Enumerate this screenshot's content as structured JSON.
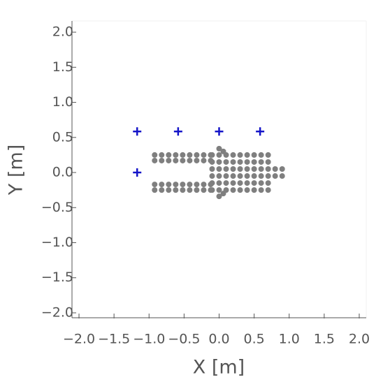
{
  "chart_data": {
    "type": "scatter",
    "xlabel": "X [m]",
    "ylabel": "Y [m]",
    "xlim": [
      -2.1,
      2.1
    ],
    "ylim": [
      -2.07,
      2.16
    ],
    "xticks": [
      {
        "value": -2,
        "label": "−2.0"
      },
      {
        "value": -1.5,
        "label": "−1.5"
      },
      {
        "value": -1,
        "label": "−1.0"
      },
      {
        "value": -0.5,
        "label": "−0.5"
      },
      {
        "value": 0,
        "label": "0.0"
      },
      0.5,
      {
        "value": 1,
        "label": "1.0"
      },
      1.5,
      {
        "value": 2,
        "label": "2.0"
      }
    ],
    "yticks": [
      {
        "value": -2,
        "label": "−2.0"
      },
      {
        "value": -1.5,
        "label": "−1.5"
      },
      {
        "value": -1,
        "label": "−1.0"
      },
      {
        "value": -0.5,
        "label": "−0.5"
      },
      {
        "value": 0,
        "label": "0.0"
      },
      0.5,
      {
        "value": 1,
        "label": "1.0"
      },
      1.5,
      {
        "value": 2,
        "label": "2.0"
      }
    ],
    "series": [
      {
        "color": "#1414c8",
        "marker": "plus",
        "x": [
          -1.17,
          -0.585,
          0,
          0.585,
          -1.17
        ],
        "y": [
          0.585,
          0.585,
          0.585,
          0.585,
          0
        ]
      },
      {
        "color": "#7f7f7f",
        "marker": "circle",
        "x": [
          -0.92,
          -0.92,
          -0.92,
          -0.92,
          -0.82,
          -0.82,
          -0.82,
          -0.82,
          -0.72,
          -0.72,
          -0.72,
          -0.72,
          -0.62,
          -0.62,
          -0.62,
          -0.62,
          -0.52,
          -0.52,
          -0.52,
          -0.52,
          -0.42,
          -0.42,
          -0.42,
          -0.42,
          -0.32,
          -0.32,
          -0.32,
          -0.32,
          -0.22,
          -0.22,
          -0.22,
          -0.22,
          -0.12,
          -0.12,
          -0.12,
          -0.12,
          -0.1,
          -0.1,
          -0.1,
          -0.1,
          -0.1,
          -0.1,
          0,
          0,
          0,
          0,
          0,
          0,
          0.1,
          0.1,
          0.1,
          0.1,
          0.1,
          0.1,
          0.2,
          0.2,
          0.2,
          0.2,
          0.2,
          0.2,
          0.3,
          0.3,
          0.3,
          0.3,
          0.3,
          0.3,
          0.4,
          0.4,
          0.4,
          0.4,
          0.4,
          0.4,
          0.5,
          0.5,
          0.5,
          0.5,
          0.5,
          0.5,
          0.6,
          0.6,
          0.6,
          0.6,
          0.6,
          0.6,
          0.7,
          0.7,
          0.7,
          0.7,
          0.7,
          0.7,
          0.8,
          0.8,
          0.9,
          0.9,
          0,
          0,
          0.06,
          0.06
        ],
        "y": [
          0.25,
          0.17,
          -0.17,
          -0.25,
          0.25,
          0.17,
          -0.17,
          -0.25,
          0.25,
          0.17,
          -0.17,
          -0.25,
          0.25,
          0.17,
          -0.17,
          -0.25,
          0.25,
          0.17,
          -0.17,
          -0.25,
          0.25,
          0.17,
          -0.17,
          -0.25,
          0.25,
          0.17,
          -0.17,
          -0.25,
          0.25,
          0.17,
          -0.17,
          -0.25,
          0.25,
          0.17,
          -0.17,
          -0.25,
          -0.25,
          -0.15,
          -0.05,
          0.05,
          0.15,
          0.25,
          -0.25,
          -0.15,
          -0.05,
          0.05,
          0.15,
          0.25,
          -0.25,
          -0.15,
          -0.05,
          0.05,
          0.15,
          0.25,
          -0.25,
          -0.15,
          -0.05,
          0.05,
          0.15,
          0.25,
          -0.25,
          -0.15,
          -0.05,
          0.05,
          0.15,
          0.25,
          -0.25,
          -0.15,
          -0.05,
          0.05,
          0.15,
          0.25,
          -0.25,
          -0.15,
          -0.05,
          0.05,
          0.15,
          0.25,
          -0.25,
          -0.15,
          -0.05,
          0.05,
          0.15,
          0.25,
          -0.25,
          -0.15,
          -0.05,
          0.05,
          0.15,
          0.25,
          0.05,
          -0.05,
          0.05,
          -0.05,
          0.34,
          -0.34,
          0.3,
          -0.3
        ]
      }
    ]
  }
}
